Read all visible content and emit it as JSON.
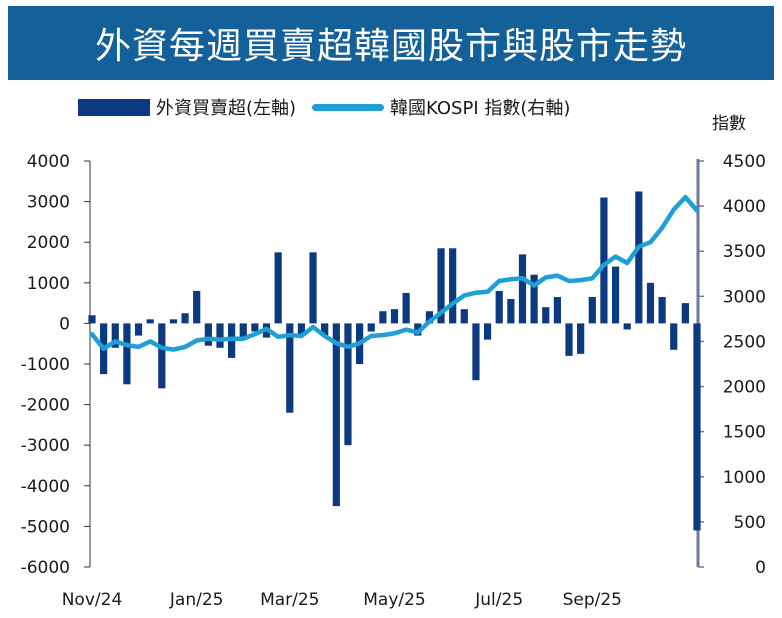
{
  "title": "外資每週買賣超韓國股市與股市走勢",
  "chart_data": {
    "type": "bar",
    "title": "外資每週買賣超韓國股市與股市走勢",
    "legend": {
      "bar_label": "外資買賣超(左軸)",
      "line_label": "韓國KOSPI 指數(右軸)",
      "placement": "top"
    },
    "right_axis_label": "指數",
    "left_axis": {
      "ylim": [
        -6000,
        4000
      ],
      "ticks": [
        "4000",
        "3000",
        "2000",
        "1000",
        "0",
        "-1000",
        "-2000",
        "-3000",
        "-4000",
        "-5000",
        "-6000"
      ]
    },
    "right_axis": {
      "ylim": [
        0,
        4500
      ],
      "ticks": [
        "4500",
        "4000",
        "3500",
        "3000",
        "2500",
        "2000",
        "1500",
        "1000",
        "500",
        "0"
      ]
    },
    "x_tick_labels": [
      "Nov/24",
      "Jan/25",
      "Mar/25",
      "May/25",
      "Jul/25",
      "Sep/25"
    ],
    "x_tick_week_index": [
      0,
      9,
      17,
      26,
      35,
      43
    ],
    "bar_color": "#0b3a7e",
    "line_color": "#1e9fd6",
    "series": [
      {
        "name": "外資買賣超(左軸)",
        "type": "bar",
        "axis": "left",
        "values": [
          200,
          -1250,
          -600,
          -1500,
          -300,
          100,
          -1600,
          100,
          250,
          800,
          -550,
          -600,
          -850,
          -350,
          -200,
          -350,
          1750,
          -2200,
          -300,
          1750,
          -300,
          -4500,
          -3000,
          -1000,
          -200,
          300,
          350,
          750,
          -300,
          300,
          1850,
          1850,
          350,
          -1400,
          -400,
          800,
          600,
          1700,
          1200,
          400,
          650,
          -800,
          -750,
          650,
          3100,
          1400,
          -150,
          3250,
          1000,
          650,
          -650,
          500,
          -5100
        ]
      },
      {
        "name": "韓國KOSPI 指數(右軸)",
        "type": "line",
        "axis": "right",
        "values": [
          2580,
          2420,
          2500,
          2460,
          2440,
          2500,
          2430,
          2410,
          2440,
          2510,
          2530,
          2520,
          2530,
          2530,
          2580,
          2640,
          2550,
          2570,
          2560,
          2660,
          2560,
          2480,
          2440,
          2480,
          2560,
          2570,
          2590,
          2630,
          2600,
          2720,
          2820,
          2920,
          3010,
          3040,
          3050,
          3170,
          3190,
          3200,
          3120,
          3210,
          3230,
          3170,
          3180,
          3200,
          3350,
          3440,
          3370,
          3550,
          3600,
          3760,
          3960,
          4100,
          3950
        ]
      }
    ]
  }
}
